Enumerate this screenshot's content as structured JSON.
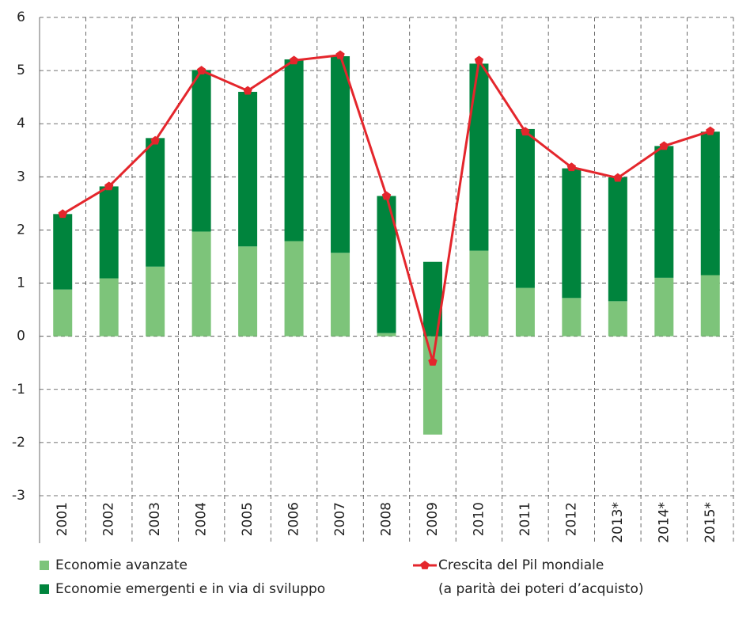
{
  "chart_data": {
    "type": "bar_line",
    "categories": [
      "2001",
      "2002",
      "2003",
      "2004",
      "2005",
      "2006",
      "2007",
      "2008",
      "2009",
      "2010",
      "2011",
      "2012",
      "2013*",
      "2014*",
      "2015*"
    ],
    "series": [
      {
        "name": "Economie avanzate",
        "kind": "bar",
        "color": "#7dc47a",
        "values": [
          0.88,
          1.09,
          1.31,
          1.97,
          1.69,
          1.79,
          1.57,
          0.06,
          -1.85,
          1.61,
          0.91,
          0.72,
          0.66,
          1.1,
          1.15
        ]
      },
      {
        "name": "Economie emergenti e in via di sviluppo",
        "kind": "bar",
        "color": "#00843d",
        "values": [
          1.42,
          1.73,
          2.42,
          3.04,
          2.91,
          3.42,
          3.7,
          2.58,
          1.4,
          3.52,
          2.99,
          2.44,
          2.33,
          2.48,
          2.7
        ]
      },
      {
        "name": "Crescita del Pil mondiale",
        "kind": "line",
        "color": "#e4262c",
        "values": [
          2.3,
          2.82,
          3.68,
          5.0,
          4.62,
          5.19,
          5.29,
          2.64,
          -0.48,
          5.19,
          3.85,
          3.18,
          2.98,
          3.58,
          3.86
        ]
      }
    ],
    "line_note": "(a parità dei poteri d’acquisto)",
    "ylim": [
      -3,
      6
    ],
    "yticks": [
      -3,
      -2,
      -1,
      0,
      1,
      2,
      3,
      4,
      5,
      6
    ],
    "grid": true
  }
}
